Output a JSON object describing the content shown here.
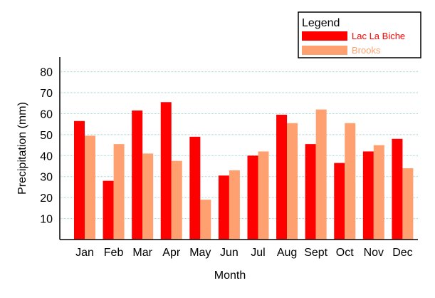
{
  "chart_data": {
    "type": "bar",
    "title": "",
    "xlabel": "Month",
    "ylabel": "Precipitation (mm)",
    "ylim": [
      0,
      87
    ],
    "yticks": [
      10,
      20,
      30,
      40,
      50,
      60,
      70,
      80
    ],
    "grid": true,
    "legend": {
      "title": "Legend",
      "placement": "top-right"
    },
    "categories": [
      "Jan",
      "Feb",
      "Mar",
      "Apr",
      "May",
      "Jun",
      "Jul",
      "Aug",
      "Sept",
      "Oct",
      "Nov",
      "Dec"
    ],
    "series": [
      {
        "name": "Lac La Biche",
        "color": "#ff0000",
        "values": [
          56.5,
          28,
          61.5,
          65.5,
          49,
          30.5,
          40,
          59.5,
          45.5,
          36.5,
          42,
          48
        ]
      },
      {
        "name": "Brooks",
        "color": "#ffa070",
        "values": [
          49.5,
          45.5,
          41,
          37.5,
          19,
          33,
          42,
          55.5,
          62,
          55.5,
          45,
          34
        ]
      }
    ]
  }
}
